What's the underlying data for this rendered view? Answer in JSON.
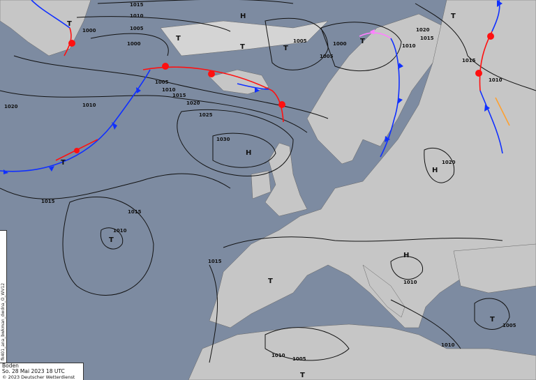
{
  "map": {
    "type": "surface pressure analysis",
    "colors": {
      "sea": "#7d8ba1",
      "land": "#c9c9c9",
      "isobar": "#111111",
      "cold_front": "#1030ff",
      "warm_front": "#ff1010",
      "occlusion": "#ff80ff",
      "trough": "#ffa030"
    },
    "pressure_labels": [
      "1015",
      "1010",
      "1005",
      "1000",
      "1000",
      "1005",
      "1010",
      "1015",
      "1020",
      "1025",
      "1030",
      "1020",
      "1010",
      "1015",
      "1015",
      "1010",
      "1005",
      "1005",
      "1000",
      "1020",
      "1015",
      "1010",
      "1015",
      "1010",
      "1020",
      "1015",
      "1010",
      "1005",
      "1010",
      "1010",
      "1005"
    ],
    "centers": [
      "H",
      "T",
      "T",
      "T",
      "T",
      "H",
      "T",
      "T",
      "T",
      "T",
      "H",
      "H",
      "T",
      "T",
      "T"
    ]
  },
  "legend": {
    "title": "Boden",
    "datetime": "So. 28 Mai 2023 18 UTC",
    "copyright": "© 2023 Deutscher Wetterdienst"
  },
  "sidebar": {
    "product_id": "fk401_ana_bwkman_dwdna_O_WV12"
  }
}
